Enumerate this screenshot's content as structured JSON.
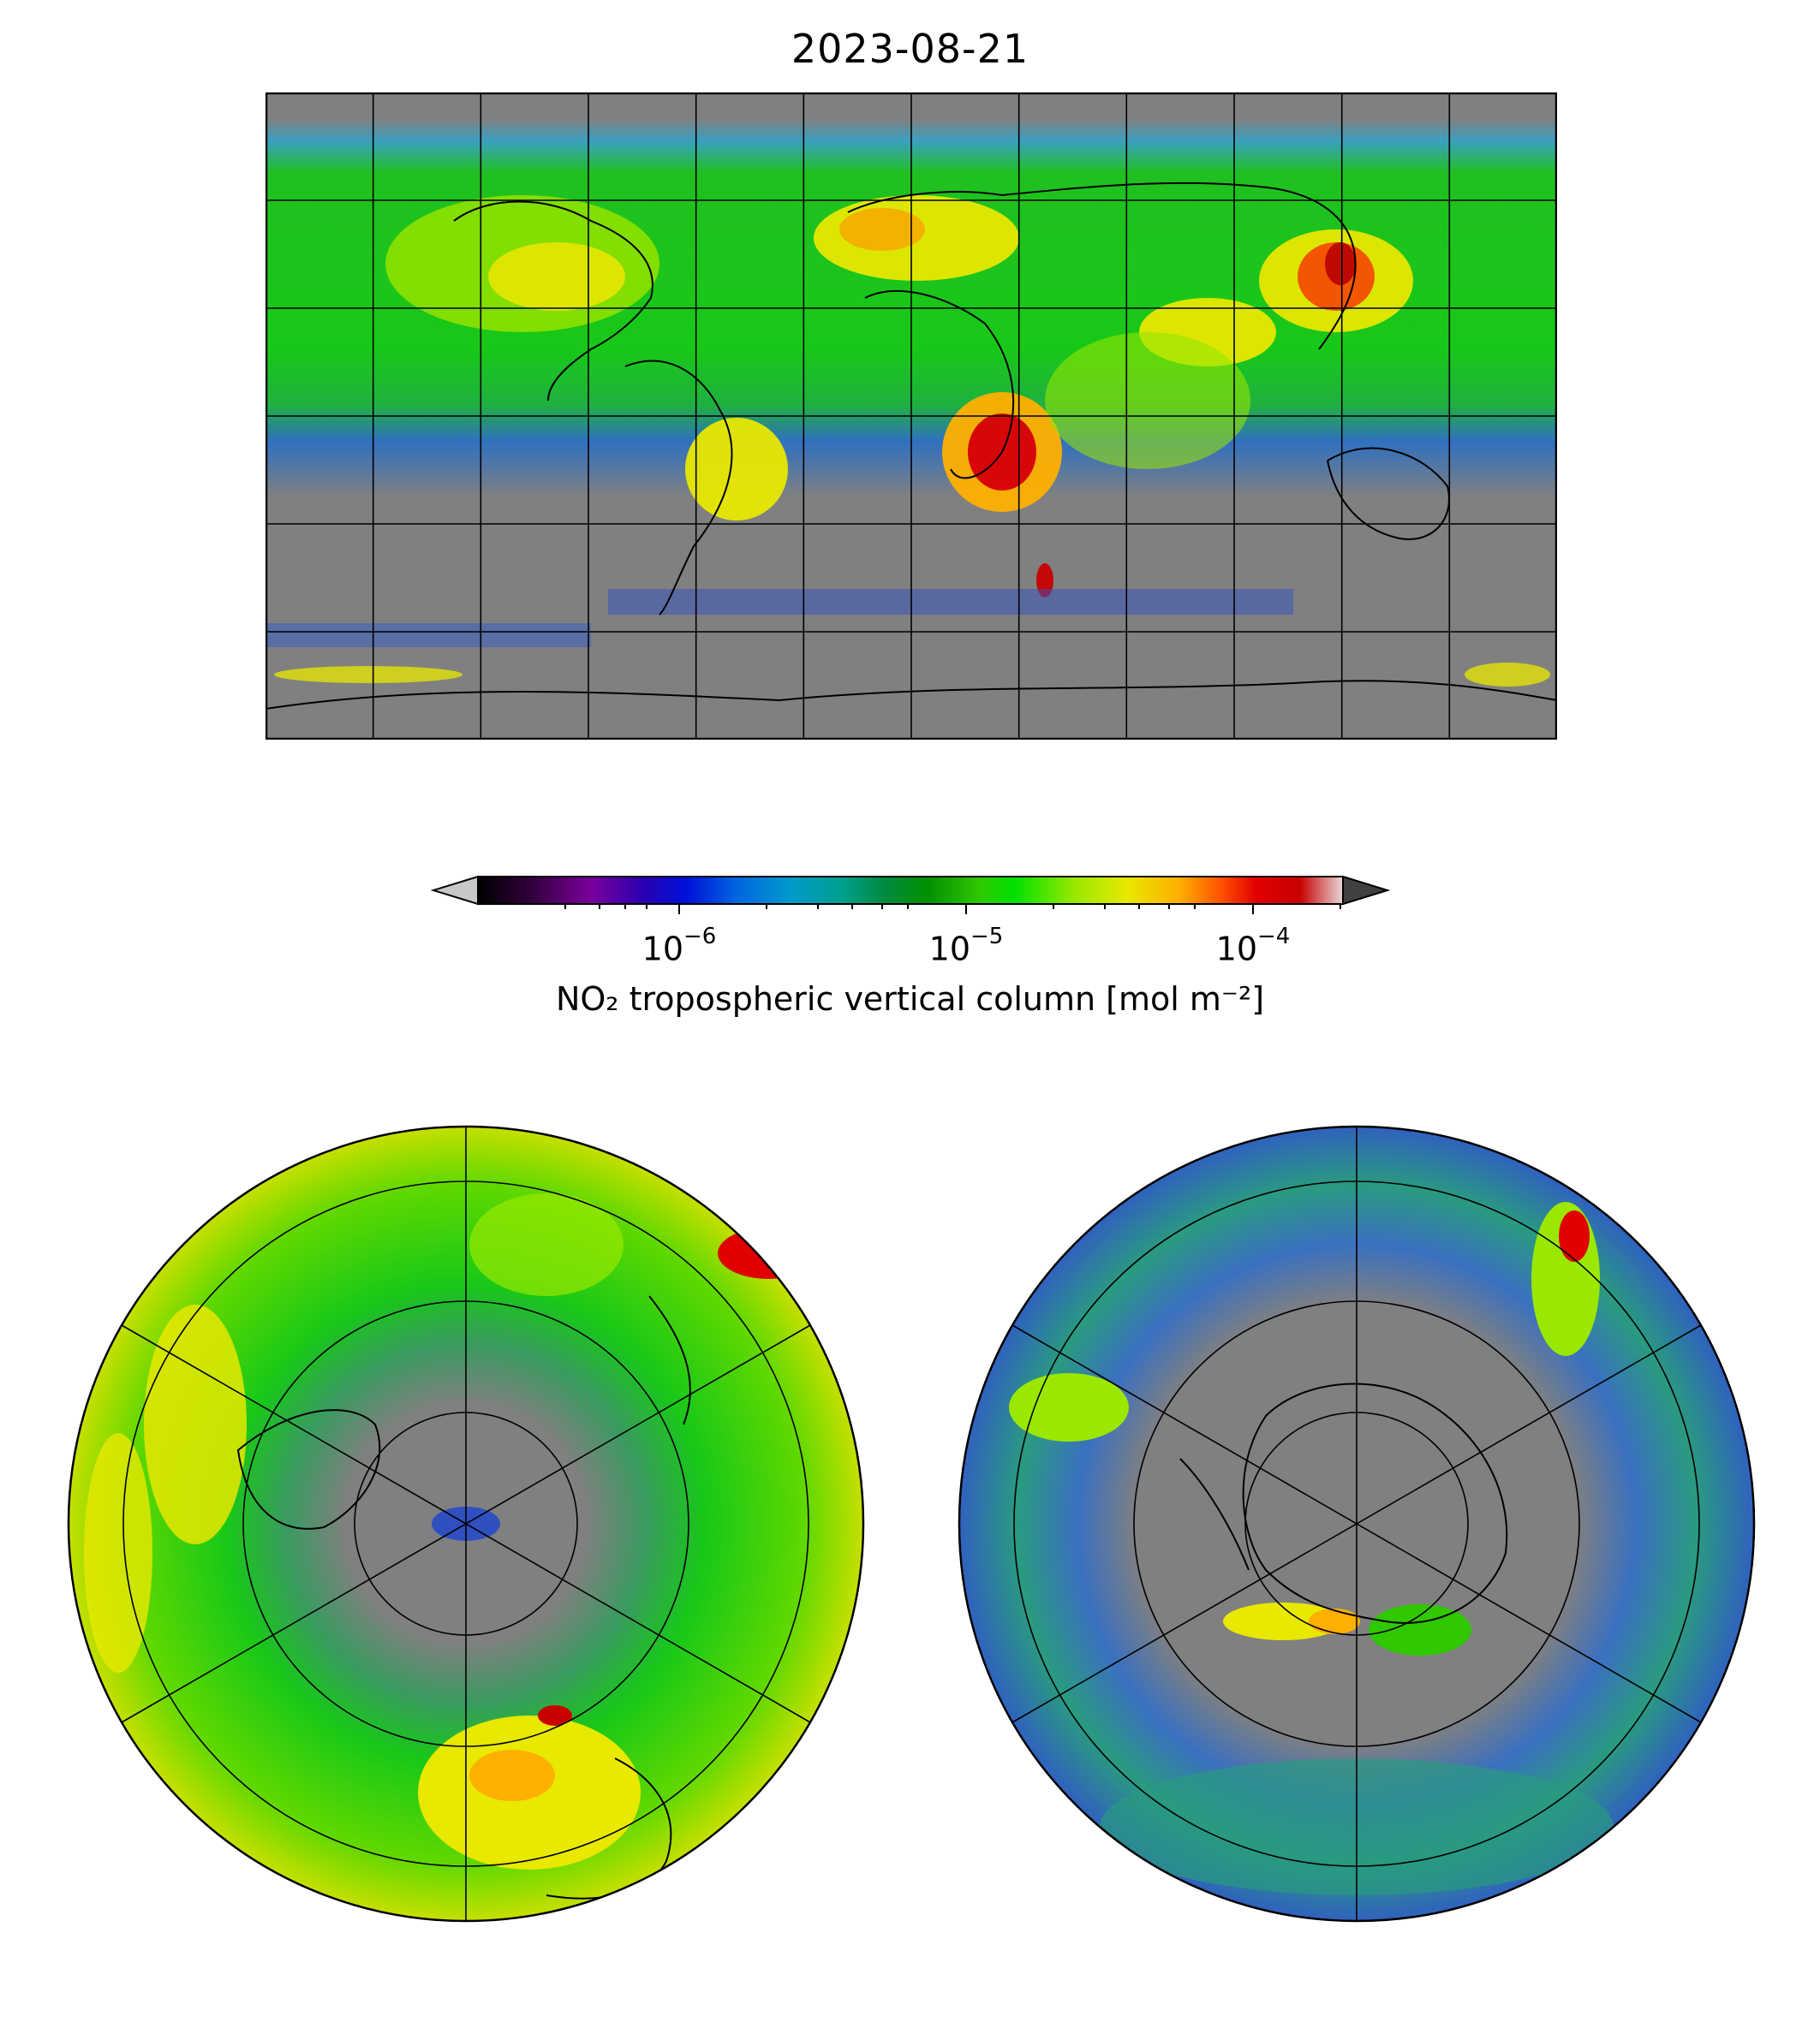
{
  "figure": {
    "title": "2023-08-21"
  },
  "colorbar": {
    "label": "NO₂ tropospheric vertical column [mol m⁻²]",
    "scale": "log",
    "range": [
      2e-07,
      0.0002
    ],
    "extend": "both",
    "ticks": [
      {
        "base": "10",
        "exp": "−6",
        "value": 1e-06
      },
      {
        "base": "10",
        "exp": "−5",
        "value": 1e-05
      },
      {
        "base": "10",
        "exp": "−4",
        "value": 0.0001
      }
    ],
    "colors": [
      "#000000",
      "#30003a",
      "#7a009a",
      "#2a00b0",
      "#0010d8",
      "#0066e0",
      "#0099cc",
      "#00a090",
      "#008a40",
      "#009000",
      "#30c800",
      "#00e000",
      "#9ae800",
      "#e8e800",
      "#ffb000",
      "#ff5000",
      "#e00000",
      "#c80000",
      "#e8d8d8"
    ],
    "under_color": "#c8c8c8",
    "over_color": "#404040"
  },
  "maps": {
    "main": {
      "projection": "PlateCarree",
      "nodata_color": "#808080"
    },
    "north": {
      "projection": "NorthPolarStereo",
      "nodata_color": "#808080"
    },
    "south": {
      "projection": "SouthPolarStereo",
      "nodata_color": "#808080"
    }
  }
}
